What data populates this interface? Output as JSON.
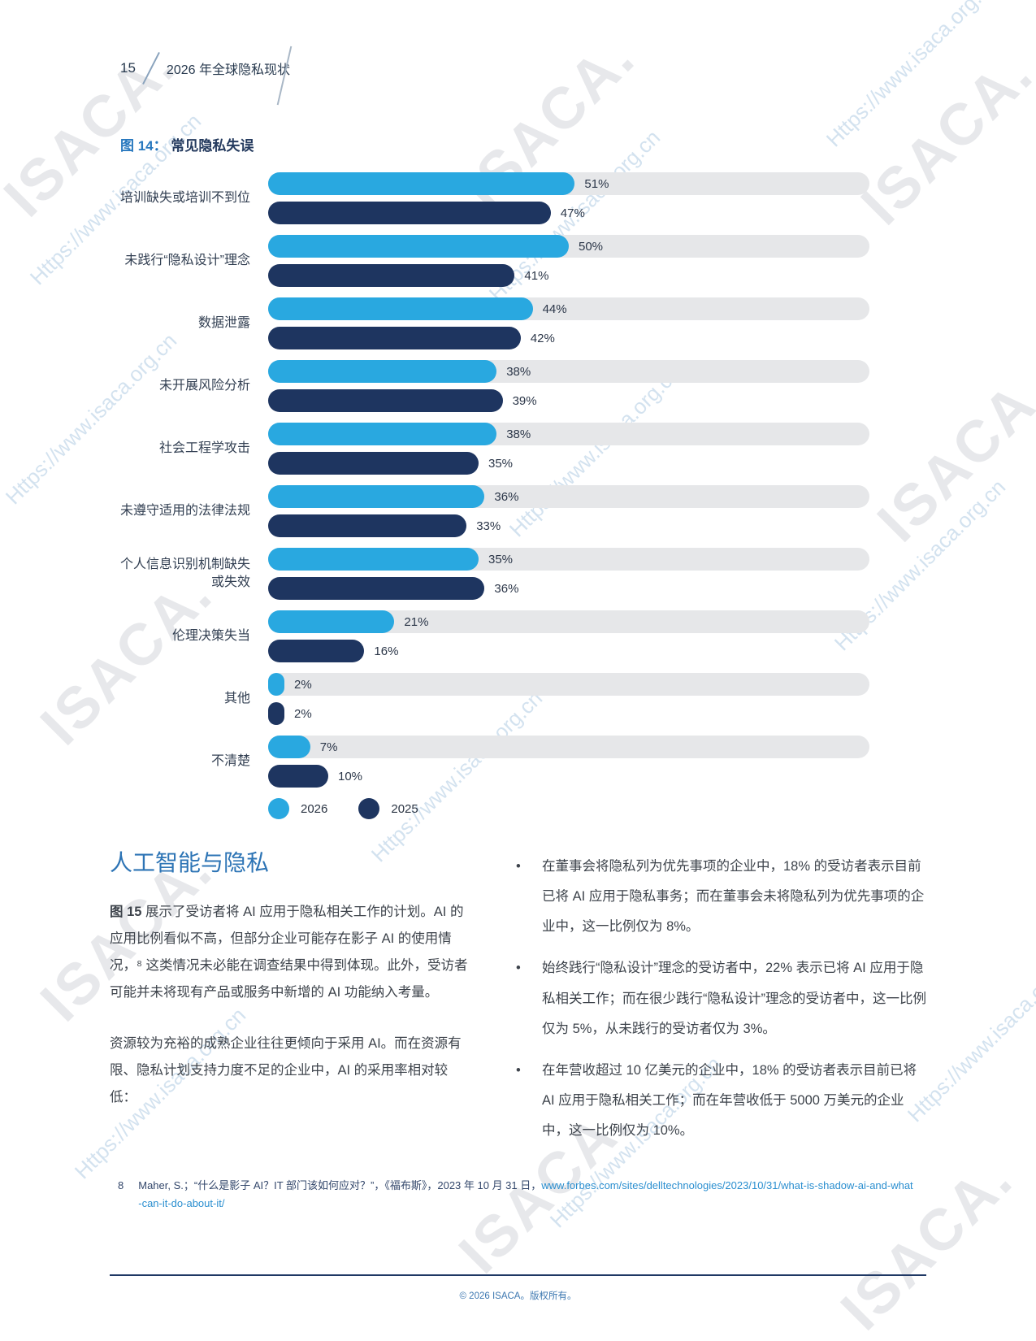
{
  "page": {
    "number": "15",
    "header_title": "2026 年全球隐私现状",
    "footer": "© 2026 ISACA。版权所有。"
  },
  "figure": {
    "label": "图 14：",
    "title": "常见隐私失误"
  },
  "chart_data": {
    "type": "bar",
    "orientation": "horizontal",
    "title": "常见隐私失误",
    "categories": [
      "培训缺失或培训不到位",
      "未践行“隐私设计”理念",
      "数据泄露",
      "未开展风险分析",
      "社会工程学攻击",
      "未遵守适用的法律法规",
      "个人信息识别机制缺失或失效",
      "伦理决策失当",
      "其他",
      "不清楚"
    ],
    "series": [
      {
        "name": "2026",
        "color": "#29a8e0",
        "values": [
          51,
          50,
          44,
          38,
          38,
          36,
          35,
          21,
          2,
          7
        ]
      },
      {
        "name": "2025",
        "color": "#1e3560",
        "values": [
          47,
          41,
          42,
          39,
          35,
          33,
          36,
          16,
          2,
          10
        ]
      }
    ],
    "xlim": [
      0,
      100
    ],
    "value_suffix": "%",
    "track_color": "#e6e7e9",
    "legend_position": "bottom"
  },
  "section": {
    "heading": "人工智能与隐私",
    "p1_lead": "图 15",
    "p1_rest": " 展示了受访者将 AI 应用于隐私相关工作的计划。AI 的应用比例看似不高，但部分企业可能存在影子 AI 的使用情况，⁸ 这类情况未必能在调查结果中得到体现。此外，受访者可能并未将现有产品或服务中新增的 AI 功能纳入考量。",
    "p2": "资源较为充裕的成熟企业往往更倾向于采用 AI。而在资源有限、隐私计划支持力度不足的企业中，AI 的采用率相对较低：",
    "bullets": [
      "在董事会将隐私列为优先事项的企业中，18% 的受访者表示目前已将 AI 应用于隐私事务；而在董事会未将隐私列为优先事项的企业中，这一比例仅为 8%。",
      "始终践行“隐私设计”理念的受访者中，22% 表示已将 AI 应用于隐私相关工作；而在很少践行“隐私设计”理念的受访者中，这一比例仅为 5%，从未践行的受访者仅为 3%。",
      "在年营收超过 10 亿美元的企业中，18% 的受访者表示目前已将 AI 应用于隐私相关工作；而在年营收低于 5000 万美元的企业中，这一比例仅为 10%。"
    ],
    "bullet_marker": "•"
  },
  "footnote": {
    "marker": "8",
    "text": "Maher, S.；“什么是影子 AI？IT 部门该如何应对？”，《福布斯》，2023 年 10 月 31 日，",
    "url": "www.forbes.com/sites/delltechnologies/2023/10/31/what-is-shadow-ai-and-what-can-it-do-about-it/"
  },
  "watermark": {
    "brand": "ISACA.",
    "url": "Https://www.isaca.org.cn"
  }
}
